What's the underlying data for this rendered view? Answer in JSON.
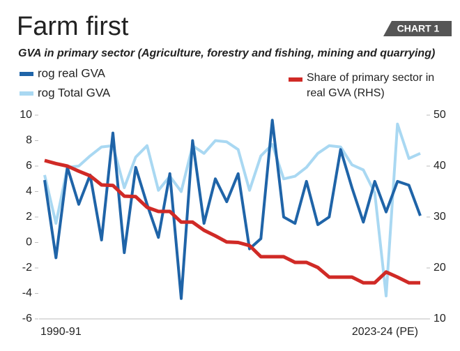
{
  "chart_data": {
    "type": "line",
    "title": "Farm first",
    "badge": "CHART 1",
    "subtitle": "GVA in primary sector (Agriculture, forestry and fishing, mining and quarrying)",
    "categories": [
      "1990-91",
      null,
      null,
      null,
      null,
      null,
      null,
      null,
      null,
      null,
      null,
      null,
      null,
      null,
      null,
      null,
      null,
      null,
      null,
      null,
      null,
      null,
      null,
      null,
      null,
      null,
      null,
      null,
      null,
      null,
      null,
      null,
      null,
      "2023-24 (PE)"
    ],
    "series": [
      {
        "name": "rog real GVA",
        "color": "#1f64a8",
        "values": [
          4.9,
          -1.2,
          5.9,
          3.0,
          5.3,
          0.2,
          8.6,
          -0.8,
          5.9,
          3.0,
          0.4,
          5.4,
          -4.4,
          8.0,
          1.5,
          5.0,
          3.2,
          5.4,
          -0.5,
          0.3,
          9.6,
          2.0,
          1.5,
          4.8,
          1.4,
          2.0,
          7.3,
          4.3,
          1.6,
          4.8,
          2.4,
          4.8,
          4.5,
          2.1
        ]
      },
      {
        "name": "rog Total GVA",
        "color": "#a9d8f2",
        "values": [
          5.3,
          1.5,
          5.9,
          6.0,
          6.8,
          7.5,
          7.6,
          4.3,
          6.7,
          7.6,
          4.1,
          5.2,
          4.0,
          7.6,
          7.0,
          8.0,
          7.9,
          7.3,
          4.1,
          6.8,
          7.7,
          5.0,
          5.2,
          5.9,
          7.0,
          7.6,
          7.5,
          6.1,
          5.7,
          3.9,
          -4.2,
          9.3,
          6.6,
          7.0
        ]
      },
      {
        "name": "Share of primary sector in real GVA (RHS)",
        "color": "#d02a26",
        "axis": "y2",
        "values": [
          41.1,
          40.5,
          40.0,
          39.0,
          38.1,
          36.3,
          36.2,
          34.1,
          34.0,
          31.9,
          31.1,
          31.1,
          29.0,
          29.0,
          27.4,
          26.3,
          25.1,
          25.0,
          24.4,
          22.2,
          22.2,
          22.2,
          21.1,
          21.1,
          20.1,
          18.2,
          18.2,
          18.2,
          17.1,
          17.1,
          19.2,
          18.2,
          17.1,
          17.1
        ]
      }
    ],
    "ylim": [
      -6,
      10
    ],
    "yticks": [
      -6,
      -4,
      -2,
      0,
      2,
      4,
      6,
      8,
      10
    ],
    "y2lim": [
      10,
      50
    ],
    "y2ticks": [
      10,
      20,
      30,
      40,
      50
    ],
    "grid": false
  }
}
